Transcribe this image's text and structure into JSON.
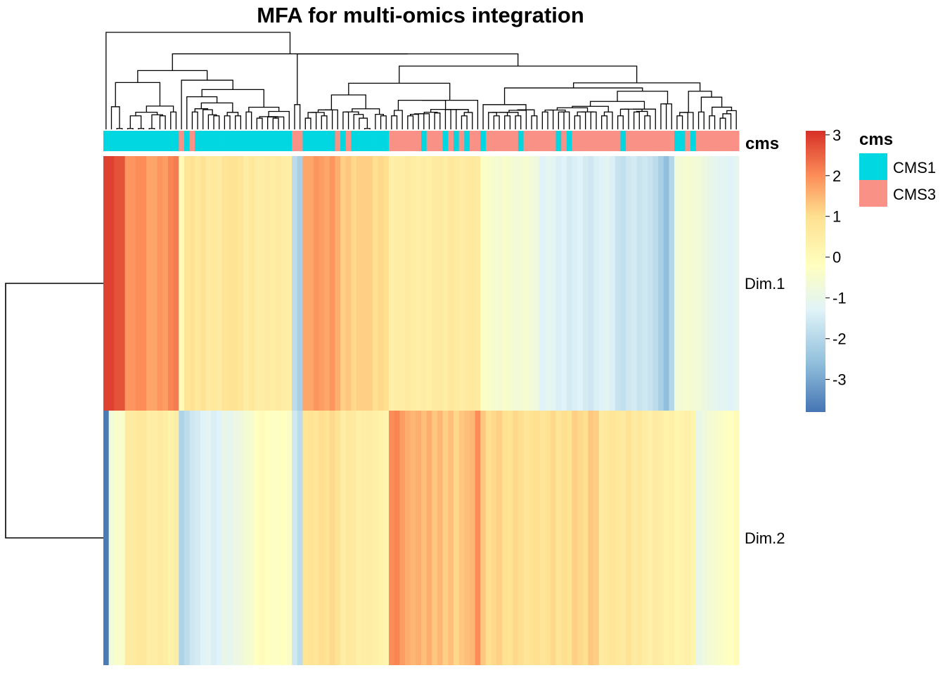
{
  "chart_data": {
    "type": "heatmap",
    "title": "MFA for multi-omics integration",
    "rows": [
      "Dim.1",
      "Dim.2"
    ],
    "annotation": {
      "name": "cms",
      "legend_title": "cms",
      "levels": [
        {
          "label": "CMS1",
          "color": "#00D7E0"
        },
        {
          "label": "CMS3",
          "color": "#FA9187"
        }
      ],
      "columns": [
        "CMS1",
        "CMS1",
        "CMS1",
        "CMS1",
        "CMS1",
        "CMS1",
        "CMS1",
        "CMS1",
        "CMS1",
        "CMS1",
        "CMS1",
        "CMS1",
        "CMS1",
        "CMS1",
        "CMS3",
        "CMS1",
        "CMS3",
        "CMS1",
        "CMS1",
        "CMS1",
        "CMS1",
        "CMS1",
        "CMS1",
        "CMS1",
        "CMS1",
        "CMS1",
        "CMS1",
        "CMS1",
        "CMS1",
        "CMS1",
        "CMS1",
        "CMS1",
        "CMS1",
        "CMS1",
        "CMS1",
        "CMS3",
        "CMS3",
        "CMS1",
        "CMS1",
        "CMS1",
        "CMS1",
        "CMS1",
        "CMS1",
        "CMS3",
        "CMS1",
        "CMS3",
        "CMS1",
        "CMS1",
        "CMS1",
        "CMS1",
        "CMS1",
        "CMS1",
        "CMS1",
        "CMS3",
        "CMS3",
        "CMS3",
        "CMS3",
        "CMS3",
        "CMS3",
        "CMS1",
        "CMS3",
        "CMS3",
        "CMS3",
        "CMS1",
        "CMS3",
        "CMS1",
        "CMS3",
        "CMS1",
        "CMS3",
        "CMS3",
        "CMS1",
        "CMS3",
        "CMS3",
        "CMS3",
        "CMS3",
        "CMS3",
        "CMS3",
        "CMS1",
        "CMS3",
        "CMS3",
        "CMS3",
        "CMS3",
        "CMS3",
        "CMS3",
        "CMS1",
        "CMS3",
        "CMS1",
        "CMS3",
        "CMS3",
        "CMS3",
        "CMS3",
        "CMS3",
        "CMS3",
        "CMS3",
        "CMS3",
        "CMS3",
        "CMS1",
        "CMS3",
        "CMS3",
        "CMS3",
        "CMS3",
        "CMS3",
        "CMS3",
        "CMS3",
        "CMS3",
        "CMS3",
        "CMS1",
        "CMS1",
        "CMS3",
        "CMS1",
        "CMS3",
        "CMS3",
        "CMS3",
        "CMS3",
        "CMS3",
        "CMS3",
        "CMS3",
        "CMS3"
      ]
    },
    "values": {
      "Dim.1": [
        2.9,
        2.9,
        2.7,
        2.7,
        1.9,
        1.9,
        2.0,
        2.0,
        1.7,
        1.7,
        1.9,
        1.8,
        2.1,
        2.2,
        0.0,
        0.8,
        0.9,
        0.7,
        0.9,
        0.6,
        0.7,
        0.6,
        0.8,
        0.9,
        0.9,
        0.8,
        0.5,
        0.7,
        0.5,
        0.5,
        0.6,
        0.5,
        0.6,
        0.5,
        0.4,
        -1.9,
        -2.2,
        1.7,
        1.7,
        1.9,
        1.8,
        1.7,
        1.9,
        1.6,
        1.2,
        1.3,
        1.1,
        1.2,
        1.2,
        1.2,
        1.0,
        1.1,
        1.0,
        0.4,
        0.5,
        0.5,
        0.6,
        0.5,
        0.4,
        0.5,
        0.4,
        0.6,
        0.6,
        0.5,
        0.7,
        0.6,
        0.5,
        0.6,
        0.7,
        0.6,
        -0.3,
        -0.4,
        -0.5,
        -0.6,
        -0.4,
        -0.5,
        -0.7,
        -0.6,
        -0.5,
        -0.7,
        -0.8,
        -1.3,
        -1.1,
        -1.2,
        -1.4,
        -1.3,
        -1.5,
        -1.4,
        -1.3,
        -1.5,
        -1.6,
        -1.4,
        -1.3,
        -1.2,
        -1.4,
        -1.7,
        -1.8,
        -1.6,
        -1.5,
        -1.7,
        -1.6,
        -1.7,
        -1.9,
        -2.2,
        -2.6,
        -2.0,
        -0.7,
        -0.6,
        -0.5,
        -0.6,
        -0.7,
        -0.8,
        -1.0,
        -1.1,
        -1.2,
        -1.2,
        -1.3,
        -1.1
      ],
      "Dim.2": [
        -3.7,
        -0.7,
        -0.4,
        -0.4,
        0.6,
        0.6,
        0.7,
        0.7,
        0.5,
        0.5,
        0.6,
        0.5,
        0.3,
        0.5,
        -2.1,
        -1.9,
        -1.6,
        -1.5,
        -1.3,
        -1.2,
        -1.4,
        -1.3,
        -1.0,
        -1.1,
        -0.9,
        -0.8,
        -0.6,
        -0.5,
        -0.2,
        -0.1,
        -0.2,
        -0.3,
        -0.3,
        -0.2,
        -0.4,
        -1.6,
        -1.9,
        0.8,
        0.9,
        0.8,
        1.0,
        0.9,
        1.1,
        0.9,
        0.5,
        0.7,
        0.6,
        0.4,
        0.5,
        0.5,
        0.4,
        0.3,
        0.2,
        2.0,
        2.1,
        1.8,
        1.6,
        1.5,
        1.6,
        1.4,
        1.6,
        1.3,
        1.5,
        1.2,
        1.4,
        1.1,
        1.3,
        1.4,
        1.5,
        2.0,
        1.3,
        1.0,
        1.1,
        1.2,
        1.0,
        0.9,
        1.1,
        1.0,
        0.8,
        0.9,
        1.0,
        0.8,
        0.9,
        1.1,
        0.8,
        1.0,
        0.9,
        1.2,
        1.1,
        1.0,
        1.3,
        1.2,
        0.6,
        0.7,
        0.8,
        0.7,
        0.6,
        0.9,
        0.6,
        0.7,
        0.5,
        0.4,
        0.6,
        0.5,
        0.3,
        0.4,
        0.2,
        0.3,
        0.4,
        0.2,
        -1.0,
        -0.8,
        -0.6,
        -0.5,
        -0.4,
        -0.3,
        -0.2,
        -0.1
      ]
    },
    "color_scale": {
      "range": [
        -3.8,
        3.1
      ],
      "ticks": [
        3,
        2,
        1,
        0,
        -1,
        -2,
        -3
      ],
      "tick_labels": [
        "3",
        "2",
        "1",
        "0",
        "-1",
        "-2",
        "-3"
      ],
      "colors": [
        {
          "v": -3.8,
          "c": "#4575B4"
        },
        {
          "v": -2.6,
          "c": "#91BFDB"
        },
        {
          "v": -1.3,
          "c": "#E0F3F8"
        },
        {
          "v": -0.2,
          "c": "#FFFFBF"
        },
        {
          "v": 1.0,
          "c": "#FEE090"
        },
        {
          "v": 2.0,
          "c": "#FC8D59"
        },
        {
          "v": 3.1,
          "c": "#D73027"
        }
      ]
    },
    "column_dendrogram": true,
    "row_dendrogram": true,
    "legend_placement": "right"
  }
}
